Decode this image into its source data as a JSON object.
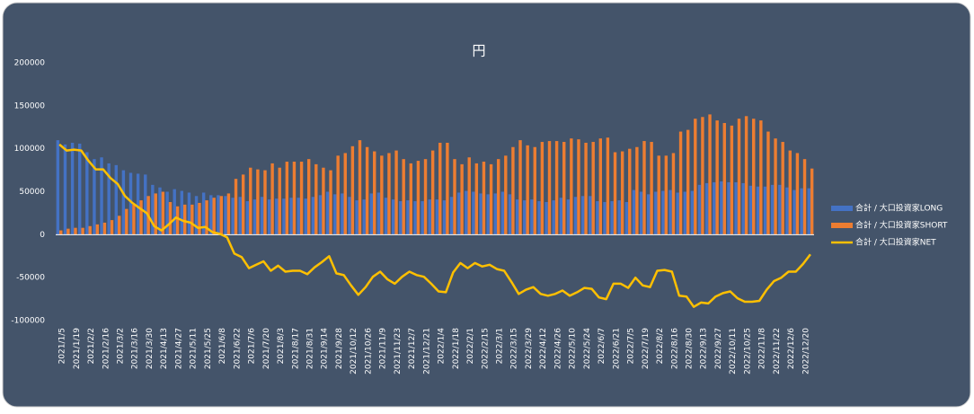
{
  "chart_data": {
    "type": "bar_line",
    "title": "円",
    "categories": [
      "2021/1/5",
      null,
      "2021/1/19",
      null,
      "2021/2/2",
      null,
      "2021/2/16",
      null,
      "2021/3/2",
      null,
      "2021/3/16",
      null,
      "2021/3/30",
      null,
      "2021/4/13",
      null,
      "2021/4/27",
      null,
      "2021/5/11",
      null,
      "2021/5/25",
      null,
      "2021/6/8",
      null,
      "2021/6/22",
      null,
      "2021/7/6",
      null,
      "2021/7/20",
      null,
      "2021/8/3",
      null,
      "2021/8/17",
      null,
      "2021/8/31",
      null,
      "2021/9/14",
      null,
      "2021/9/28",
      null,
      "2021/10/12",
      null,
      "2021/10/26",
      null,
      "2021/11/9",
      null,
      "2021/11/23",
      null,
      "2021/12/7",
      null,
      "2021/12/21",
      null,
      "2022/1/4",
      null,
      "2022/1/18",
      null,
      "2022/2/1",
      null,
      "2022/2/15",
      null,
      "2022/3/1",
      null,
      "2022/3/15",
      null,
      "2022/3/29",
      null,
      "2022/4/12",
      null,
      "2022/4/26",
      null,
      "2022/5/10",
      null,
      "2022/5/24",
      null,
      "2022/6/7",
      null,
      "2022/6/21",
      null,
      "2022/7/5",
      null,
      "2022/7/19",
      null,
      "2022/8/2",
      null,
      "2022/8/16",
      null,
      "2022/8/30",
      null,
      "2022/9/13",
      null,
      "2022/9/27",
      null,
      "2022/10/11",
      null,
      "2022/10/25",
      null,
      "2022/11/8",
      null,
      "2022/11/22",
      null,
      "2022/12/6",
      null,
      "2022/12/20",
      null
    ],
    "series": [
      {
        "name": "合計 / 大口投資家LONG",
        "color": "#4472c4",
        "kind": "bar",
        "values": [
          110000,
          105000,
          107000,
          106000,
          96000,
          88000,
          90000,
          83000,
          81000,
          75000,
          72000,
          71000,
          70000,
          58000,
          55000,
          50000,
          53000,
          51000,
          49000,
          45000,
          49000,
          46000,
          46000,
          45000,
          43000,
          44000,
          39000,
          41000,
          44000,
          41000,
          42000,
          42000,
          43000,
          43000,
          42000,
          44000,
          46000,
          50000,
          47000,
          48000,
          44000,
          40000,
          41000,
          48000,
          49000,
          43000,
          41000,
          39000,
          40000,
          39000,
          39000,
          41000,
          41000,
          40000,
          44000,
          49000,
          51000,
          50000,
          48000,
          47000,
          48000,
          50000,
          47000,
          41000,
          40000,
          41000,
          39000,
          38000,
          40000,
          43000,
          41000,
          44000,
          45000,
          45000,
          39000,
          38000,
          39000,
          40000,
          38000,
          52000,
          50000,
          47000,
          50000,
          51000,
          52000,
          49000,
          50000,
          51000,
          58000,
          60000,
          61000,
          62000,
          61000,
          61000,
          60000,
          57000,
          56000,
          56000,
          58000,
          58000,
          55000,
          52000,
          54000,
          54000
        ]
      },
      {
        "name": "合計 / 大口投資家SHORT",
        "color": "#ed7d31",
        "kind": "bar",
        "values": [
          5000,
          7000,
          8000,
          8000,
          10000,
          12000,
          14000,
          17000,
          22000,
          30000,
          35000,
          40000,
          45000,
          48000,
          50000,
          38000,
          33000,
          35000,
          35000,
          37000,
          40000,
          43000,
          45000,
          48000,
          65000,
          70000,
          78000,
          76000,
          75000,
          83000,
          78000,
          85000,
          85000,
          85000,
          88000,
          82000,
          78000,
          75000,
          92000,
          95000,
          103000,
          110000,
          102000,
          97000,
          92000,
          95000,
          98000,
          88000,
          83000,
          86000,
          88000,
          98000,
          107000,
          107000,
          88000,
          82000,
          90000,
          83000,
          85000,
          82000,
          88000,
          92000,
          102000,
          110000,
          104000,
          102000,
          108000,
          109000,
          109000,
          108000,
          112000,
          111000,
          107000,
          108000,
          112000,
          113000,
          96000,
          97000,
          100000,
          102000,
          109000,
          108000,
          92000,
          92000,
          95000,
          120000,
          122000,
          135000,
          137000,
          140000,
          133000,
          130000,
          127000,
          135000,
          138000,
          135000,
          133000,
          120000,
          112000,
          108000,
          98000,
          95000,
          88000,
          77000
        ]
      },
      {
        "name": "合計 / 大口投資家NET",
        "color": "#ffc000",
        "kind": "line",
        "values": [
          105000,
          98000,
          99000,
          98000,
          86000,
          76000,
          76000,
          66000,
          59000,
          45000,
          37000,
          31000,
          25000,
          10000,
          5000,
          12000,
          20000,
          16000,
          14000,
          8000,
          9000,
          3000,
          1000,
          -3000,
          -22000,
          -26000,
          -39000,
          -35000,
          -31000,
          -42000,
          -36000,
          -43000,
          -42000,
          -42000,
          -46000,
          -38000,
          -32000,
          -25000,
          -45000,
          -47000,
          -59000,
          -70000,
          -61000,
          -49000,
          -43000,
          -52000,
          -57000,
          -49000,
          -43000,
          -47000,
          -49000,
          -57000,
          -66000,
          -67000,
          -44000,
          -33000,
          -39000,
          -33000,
          -37000,
          -35000,
          -40000,
          -42000,
          -55000,
          -69000,
          -64000,
          -61000,
          -69000,
          -71000,
          -69000,
          -65000,
          -71000,
          -67000,
          -62000,
          -63000,
          -73000,
          -75000,
          -57000,
          -57000,
          -62000,
          -50000,
          -59000,
          -61000,
          -42000,
          -41000,
          -43000,
          -71000,
          -72000,
          -84000,
          -79000,
          -80000,
          -72000,
          -68000,
          -66000,
          -74000,
          -78000,
          -78000,
          -77000,
          -64000,
          -54000,
          -50000,
          -43000,
          -43000,
          -34000,
          -23000
        ]
      }
    ],
    "ylim": [
      -100000,
      200000
    ],
    "yticks": [
      -100000,
      -50000,
      0,
      50000,
      100000,
      150000,
      200000
    ],
    "legend": "right",
    "grid": false
  }
}
